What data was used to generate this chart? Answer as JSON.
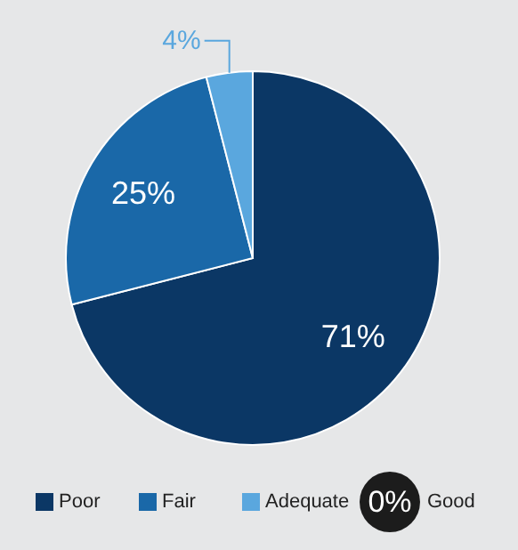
{
  "chart_data": {
    "type": "pie",
    "categories": [
      "Poor",
      "Fair",
      "Adequate",
      "Good"
    ],
    "values": [
      71,
      25,
      4,
      0
    ],
    "value_labels": [
      "71%",
      "25%",
      "4%",
      "0%"
    ],
    "colors": [
      "#0b3765",
      "#1a68a8",
      "#5aa7de",
      "#1c1c1c"
    ],
    "legend": "bottom"
  }
}
